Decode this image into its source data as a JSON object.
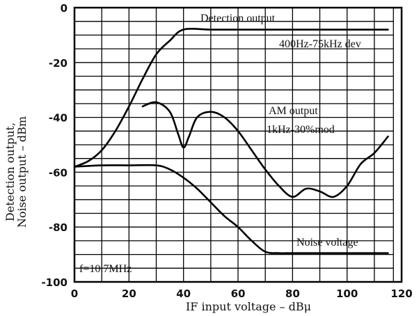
{
  "chart_data": {
    "type": "line",
    "title": "",
    "xlabel": "IF input voltage  –  dBμ",
    "ylabel_lines": [
      "Detection output,",
      "Noise output  –  dBm"
    ],
    "xlim": [
      0,
      120
    ],
    "ylim": [
      -100,
      0
    ],
    "x_ticks": [
      0,
      20,
      40,
      60,
      80,
      100,
      120
    ],
    "y_ticks": [
      0,
      -20,
      -40,
      -60,
      -80,
      -100
    ],
    "x_grid": [
      0,
      10,
      20,
      30,
      40,
      50,
      60,
      70,
      80,
      90,
      100,
      110,
      117
    ],
    "y_grid": [
      0,
      -5,
      -10,
      -15,
      -20,
      -25,
      -30,
      -35,
      -40,
      -45,
      -50,
      -55,
      -60,
      -65,
      -70,
      -75,
      -80,
      -85,
      -90,
      -95,
      -100
    ],
    "series": [
      {
        "name": "Detection output",
        "x": [
          0,
          5,
          10,
          15,
          20,
          25,
          30,
          35,
          40,
          50,
          60,
          80,
          100,
          115
        ],
        "y": [
          -58,
          -56,
          -52,
          -45,
          -36,
          -26,
          -17,
          -12,
          -8,
          -8,
          -8,
          -8,
          -8,
          -8
        ]
      },
      {
        "name": "AM output",
        "x": [
          25,
          30,
          35,
          38,
          40,
          42,
          45,
          50,
          55,
          60,
          65,
          70,
          75,
          80,
          85,
          90,
          95,
          100,
          105,
          110,
          115
        ],
        "y": [
          -36,
          -34.5,
          -38,
          -46,
          -51,
          -47,
          -40,
          -38,
          -40,
          -45,
          -52,
          -59,
          -65,
          -69,
          -66,
          -67,
          -69,
          -65,
          -57,
          -53,
          -47
        ]
      },
      {
        "name": "Noise voltage",
        "x": [
          0,
          10,
          20,
          30,
          35,
          40,
          45,
          50,
          55,
          60,
          65,
          70,
          75,
          80,
          90,
          100,
          115
        ],
        "y": [
          -58,
          -57.5,
          -57.5,
          -57.5,
          -59,
          -62,
          -66,
          -71,
          -76,
          -80,
          -85,
          -89,
          -89.5,
          -89.5,
          -89.5,
          -89.5,
          -89.5
        ]
      }
    ],
    "annotations": [
      {
        "id": "detection-label",
        "text": "Detection output"
      },
      {
        "id": "detection-condition",
        "text": "400Hz-75kHz dev"
      },
      {
        "id": "am-label",
        "text": "AM output"
      },
      {
        "id": "am-condition",
        "text": "1kHz-30%mod"
      },
      {
        "id": "noise-label",
        "text": "Noise voltage"
      },
      {
        "id": "freq-label",
        "text": "f=10.7MHz"
      }
    ]
  }
}
